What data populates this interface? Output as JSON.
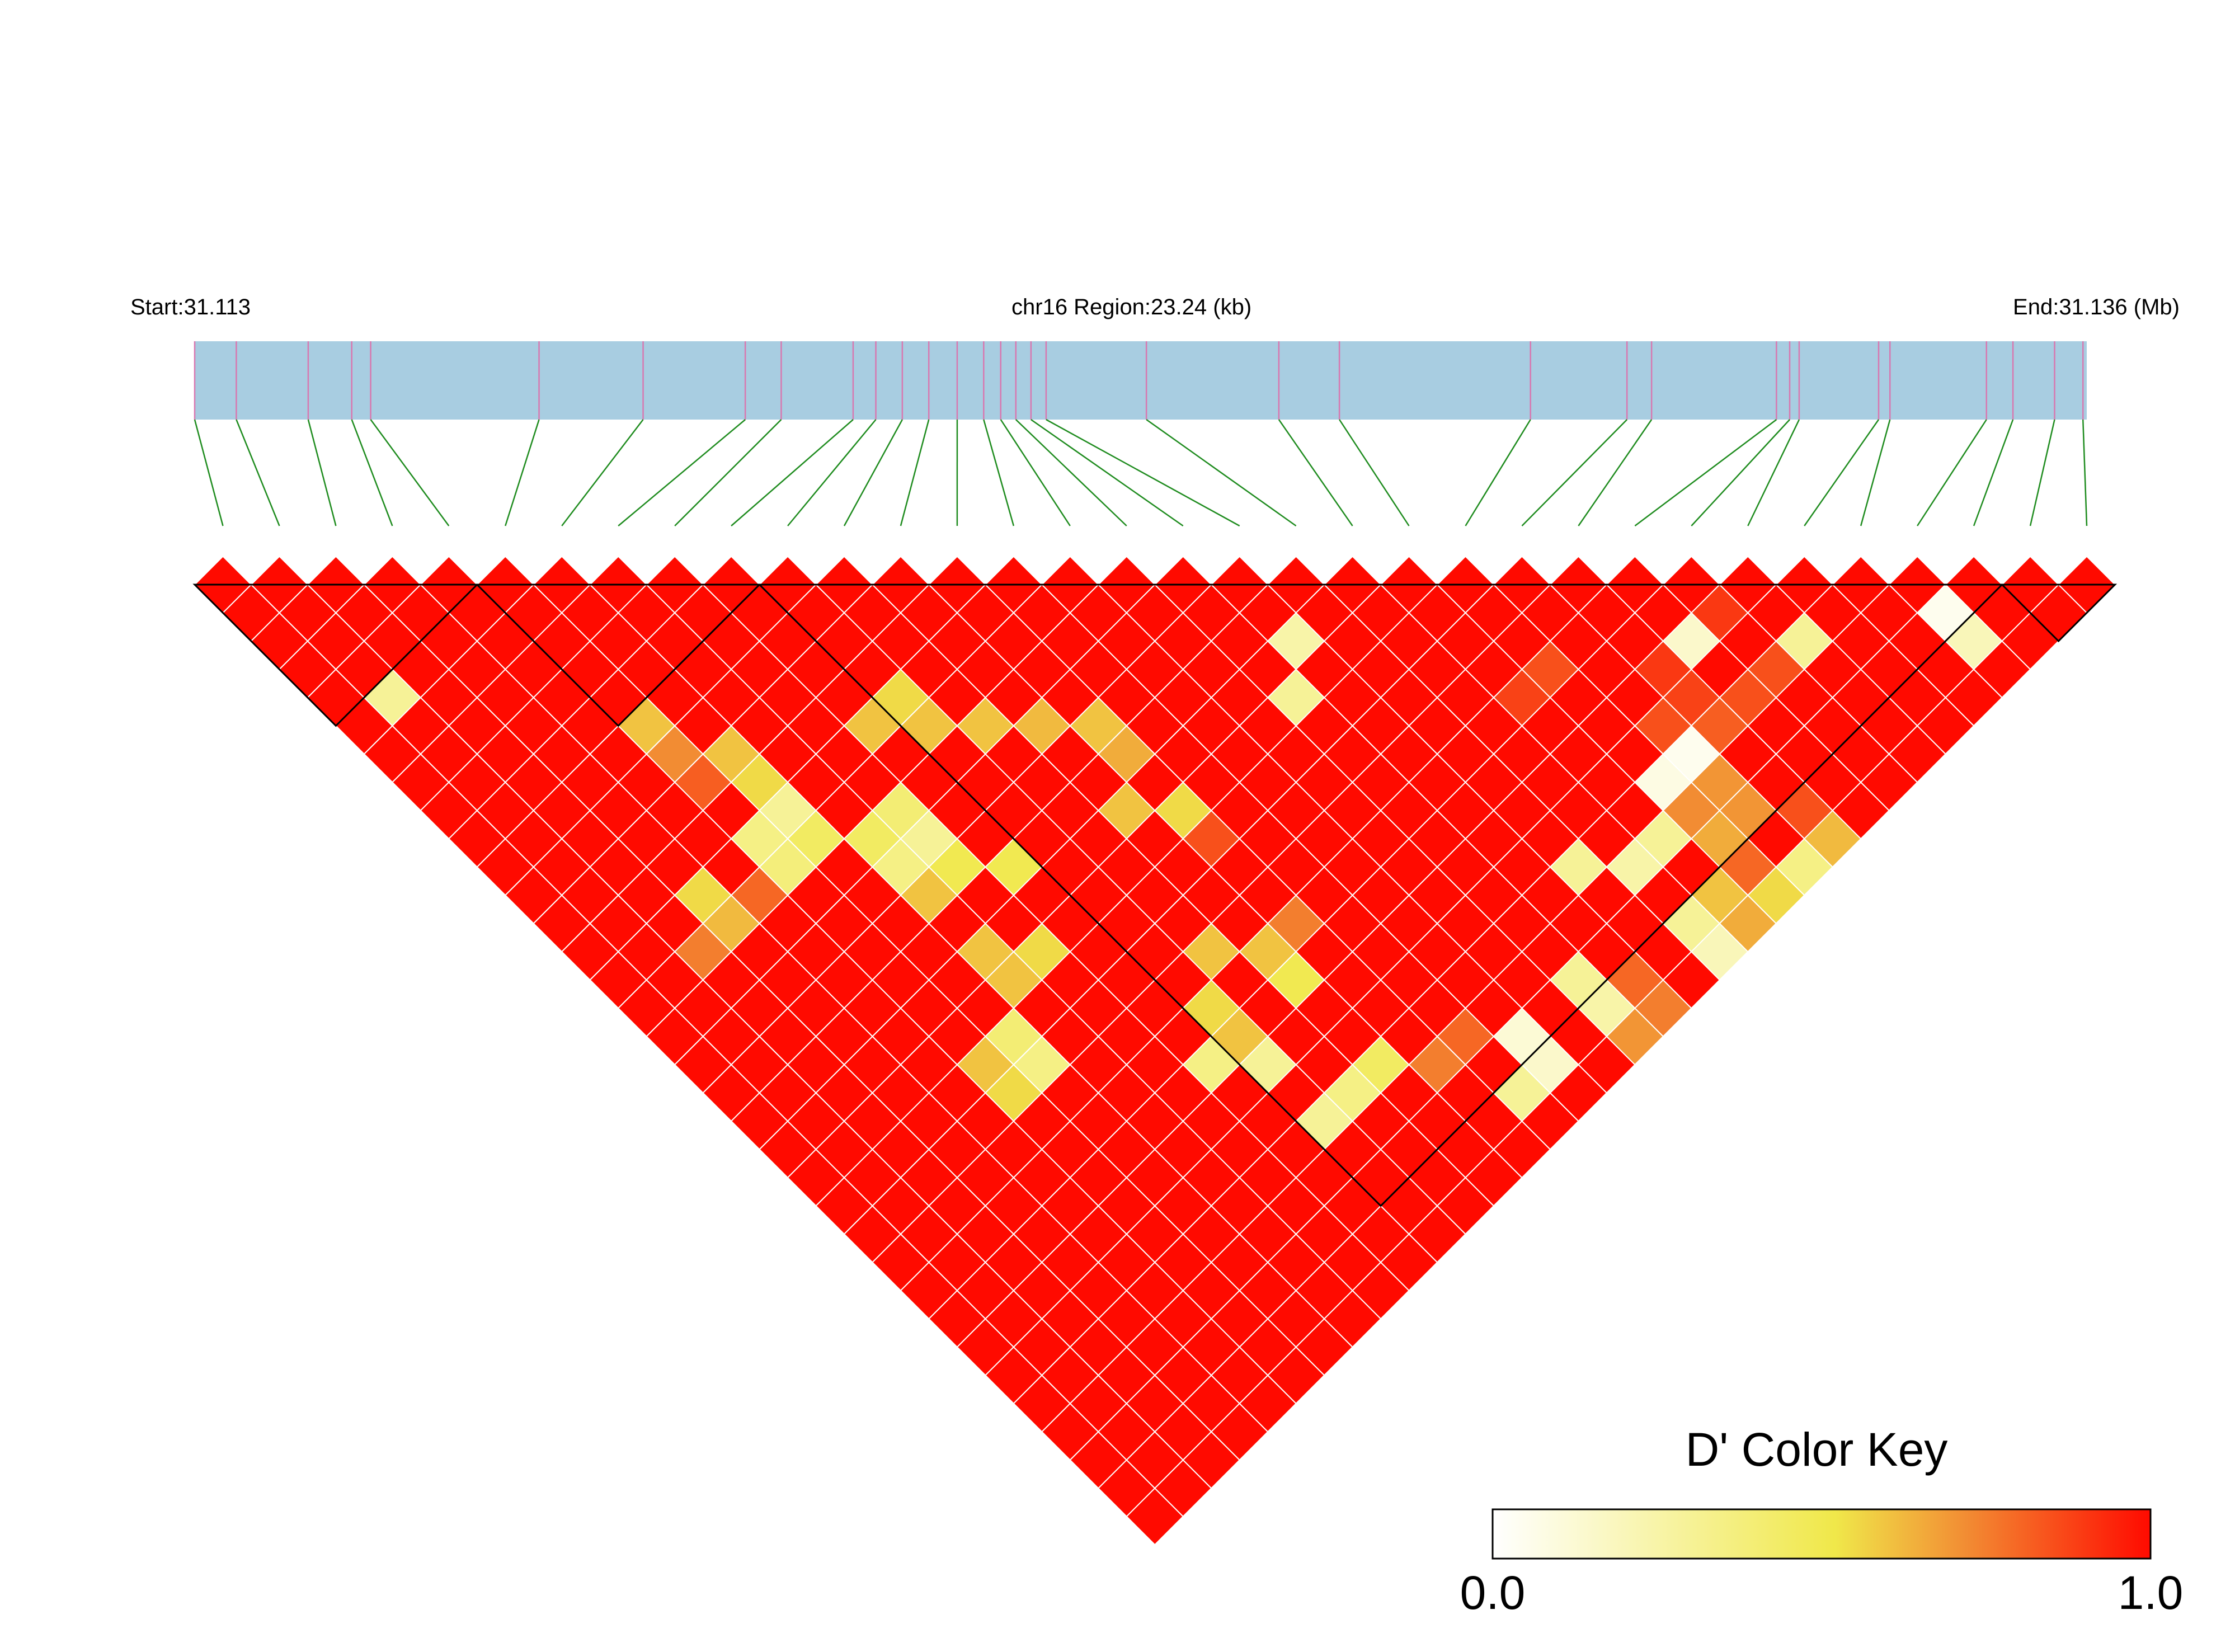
{
  "header": {
    "start_label": "Start:31.113",
    "region_label": "chr16 Region:23.24 (kb)",
    "end_label": "End:31.136 (Mb)"
  },
  "chart_data": {
    "type": "heatmap",
    "description": "Pairwise D' linkage-disequilibrium heatmap for 34 SNPs",
    "chromosome": "chr16",
    "region_start_mb": 31.113,
    "region_end_mb": 31.136,
    "region_length_kb": 23.24,
    "snp_count": 34,
    "snp_relative_positions": [
      0.0,
      0.022,
      0.06,
      0.083,
      0.093,
      0.182,
      0.237,
      0.291,
      0.31,
      0.348,
      0.36,
      0.374,
      0.388,
      0.403,
      0.417,
      0.426,
      0.434,
      0.442,
      0.45,
      0.503,
      0.573,
      0.605,
      0.706,
      0.757,
      0.77,
      0.836,
      0.843,
      0.848,
      0.89,
      0.896,
      0.947,
      0.961,
      0.983,
      0.998
    ],
    "value_default": 1.0,
    "value_range": [
      0.0,
      1.0
    ],
    "exceptions": [
      {
        "i": 1,
        "j": 5,
        "v": 0.3
      },
      {
        "i": 5,
        "j": 10,
        "v": 0.6
      },
      {
        "i": 5,
        "j": 11,
        "v": 0.72
      },
      {
        "i": 5,
        "j": 12,
        "v": 0.82
      },
      {
        "i": 6,
        "j": 12,
        "v": 0.6
      },
      {
        "i": 6,
        "j": 13,
        "v": 0.55
      },
      {
        "i": 9,
        "j": 14,
        "v": 0.6
      },
      {
        "i": 10,
        "j": 14,
        "v": 0.55
      },
      {
        "i": 10,
        "j": 15,
        "v": 0.6
      },
      {
        "i": 11,
        "j": 16,
        "v": 0.6
      },
      {
        "i": 12,
        "j": 17,
        "v": 0.62
      },
      {
        "i": 13,
        "j": 18,
        "v": 0.6
      },
      {
        "i": 13,
        "j": 19,
        "v": 0.65
      },
      {
        "i": 5,
        "j": 14,
        "v": 0.35
      },
      {
        "i": 6,
        "j": 14,
        "v": 0.3
      },
      {
        "i": 5,
        "j": 15,
        "v": 0.38
      },
      {
        "i": 6,
        "j": 15,
        "v": 0.45
      },
      {
        "i": 4,
        "j": 15,
        "v": 0.8
      },
      {
        "i": 3,
        "j": 15,
        "v": 0.62
      },
      {
        "i": 3,
        "j": 14,
        "v": 0.55
      },
      {
        "i": 2,
        "j": 15,
        "v": 0.75
      },
      {
        "i": 7,
        "j": 16,
        "v": 0.45
      },
      {
        "i": 8,
        "j": 16,
        "v": 0.4
      },
      {
        "i": 7,
        "j": 17,
        "v": 0.35
      },
      {
        "i": 8,
        "j": 17,
        "v": 0.3
      },
      {
        "i": 7,
        "j": 18,
        "v": 0.6
      },
      {
        "i": 8,
        "j": 18,
        "v": 0.5
      },
      {
        "i": 9,
        "j": 19,
        "v": 0.5
      },
      {
        "i": 7,
        "j": 20,
        "v": 0.6
      },
      {
        "i": 7,
        "j": 21,
        "v": 0.6
      },
      {
        "i": 8,
        "j": 21,
        "v": 0.55
      },
      {
        "i": 6,
        "j": 22,
        "v": 0.4
      },
      {
        "i": 5,
        "j": 22,
        "v": 0.6
      },
      {
        "i": 6,
        "j": 23,
        "v": 0.35
      },
      {
        "i": 5,
        "j": 23,
        "v": 0.55
      },
      {
        "i": 12,
        "j": 20,
        "v": 0.6
      },
      {
        "i": 13,
        "j": 21,
        "v": 0.55
      },
      {
        "i": 13,
        "j": 22,
        "v": 0.85
      },
      {
        "i": 11,
        "j": 24,
        "v": 0.6
      },
      {
        "i": 10,
        "j": 25,
        "v": 0.55
      },
      {
        "i": 10,
        "j": 26,
        "v": 0.6
      },
      {
        "i": 9,
        "j": 26,
        "v": 0.35
      },
      {
        "i": 10,
        "j": 27,
        "v": 0.3
      },
      {
        "i": 13,
        "j": 25,
        "v": 0.75
      },
      {
        "i": 12,
        "j": 25,
        "v": 0.6
      },
      {
        "i": 12,
        "j": 26,
        "v": 0.5
      },
      {
        "i": 10,
        "j": 29,
        "v": 0.3
      },
      {
        "i": 11,
        "j": 29,
        "v": 0.35
      },
      {
        "i": 12,
        "j": 29,
        "v": 0.45
      },
      {
        "i": 13,
        "j": 30,
        "v": 0.75
      },
      {
        "i": 14,
        "j": 30,
        "v": 0.8
      },
      {
        "i": 17,
        "j": 21,
        "v": 0.3
      },
      {
        "i": 14,
        "j": 32,
        "v": 0.3
      },
      {
        "i": 15,
        "j": 32,
        "v": 0.15
      },
      {
        "i": 15,
        "j": 31,
        "v": 0.12
      },
      {
        "i": 17,
        "j": 31,
        "v": 0.3
      },
      {
        "i": 17,
        "j": 32,
        "v": 0.25
      },
      {
        "i": 17,
        "j": 33,
        "v": 0.7
      },
      {
        "i": 18,
        "j": 33,
        "v": 0.75
      },
      {
        "i": 18,
        "j": 32,
        "v": 0.8
      },
      {
        "i": 19,
        "j": 29,
        "v": 0.3
      },
      {
        "i": 20,
        "j": 30,
        "v": 0.25
      },
      {
        "i": 21,
        "j": 30,
        "v": 0.3
      },
      {
        "i": 22,
        "j": 30,
        "v": 0.72
      },
      {
        "i": 23,
        "j": 30,
        "v": 0.7
      },
      {
        "i": 22,
        "j": 31,
        "v": 0.65
      },
      {
        "i": 23,
        "j": 31,
        "v": 0.7
      },
      {
        "i": 24,
        "j": 29,
        "v": 0.82
      },
      {
        "i": 25,
        "j": 29,
        "v": 0.85
      },
      {
        "i": 26,
        "j": 29,
        "v": 0.85
      },
      {
        "i": 21,
        "j": 33,
        "v": 0.65
      },
      {
        "i": 22,
        "j": 33,
        "v": 0.55
      },
      {
        "i": 23,
        "j": 33,
        "v": 0.35
      },
      {
        "i": 24,
        "j": 33,
        "v": 0.62
      },
      {
        "i": 21,
        "j": 32,
        "v": 0.6
      },
      {
        "i": 20,
        "j": 32,
        "v": 0.3
      },
      {
        "i": 20,
        "j": 33,
        "v": 0.2
      },
      {
        "i": 22,
        "j": 32,
        "v": 0.8
      },
      {
        "i": 24,
        "j": 32,
        "v": 0.85
      },
      {
        "i": 21,
        "j": 25,
        "v": 0.88
      },
      {
        "i": 22,
        "j": 25,
        "v": 0.85
      },
      {
        "i": 24,
        "j": 28,
        "v": 0.88
      },
      {
        "i": 24,
        "j": 27,
        "v": 0.9
      },
      {
        "i": 26,
        "j": 27,
        "v": 0.9
      },
      {
        "i": 18,
        "j": 20,
        "v": 0.25
      },
      {
        "i": 25,
        "j": 27,
        "v": 0.15
      },
      {
        "i": 27,
        "j": 29,
        "v": 0.3
      },
      {
        "i": 30,
        "j": 31,
        "v": 0.05
      },
      {
        "i": 30,
        "j": 32,
        "v": 0.2
      },
      {
        "i": 22,
        "j": 29,
        "v": 0.08
      },
      {
        "i": 23,
        "j": 29,
        "v": 0.05
      },
      {
        "i": 23,
        "j": 28,
        "v": 0.85
      }
    ],
    "ld_blocks": [
      {
        "first_snp": 1,
        "last_snp": 5
      },
      {
        "first_snp": 6,
        "last_snp": 10
      },
      {
        "first_snp": 11,
        "last_snp": 32
      },
      {
        "first_snp": 33,
        "last_snp": 34
      }
    ],
    "color_key": {
      "title": "D' Color Key",
      "min_label": "0.0",
      "max_label": "1.0",
      "stops": [
        "#ffffff",
        "#f0e84a",
        "#f28c33",
        "#ff0a00"
      ]
    },
    "colors": {
      "region_bar": "#a8cde1",
      "snp_tick": "#d878b0",
      "connector": "#1f8c1f",
      "cell_border": "#ffffff",
      "block_outline": "#000000"
    }
  }
}
